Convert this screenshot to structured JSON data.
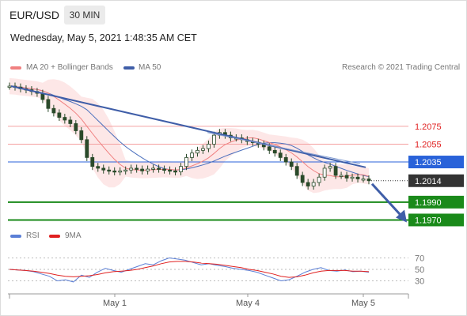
{
  "header": {
    "symbol": "EUR/USD",
    "timeframe": "30 MIN",
    "datetime": "Wednesday, May 5, 2021 1:48:35 AM CET"
  },
  "legend": {
    "ma20": "MA 20 + Bollinger Bands",
    "ma50": "MA 50",
    "credit": "Research © 2021 Trading Central",
    "rsi": "RSI",
    "rsi_ma": "9MA"
  },
  "colors": {
    "ma20": "#f08080",
    "band": "#fde3e3",
    "ma50": "#4a6fbd",
    "trendline": "#3f5ea8",
    "resistance": "#f4a0a0",
    "pivot": "#2962d9",
    "support": "#1a8a1a",
    "rsi": "#5b7fd6",
    "rsi_ma": "#e02020",
    "candle": "#2a4a2a"
  },
  "chart_data": [
    {
      "type": "line",
      "title": "EUR/USD",
      "xlabel": "",
      "ylabel": "",
      "x_ticks": [
        "May 1",
        "May 4",
        "May 5"
      ],
      "ylim": [
        1.1958,
        1.2128
      ],
      "levels": [
        {
          "label": "1.2075",
          "value": 1.2075,
          "kind": "resistance"
        },
        {
          "label": "1.2055",
          "value": 1.2055,
          "kind": "resistance"
        },
        {
          "label": "1.2035",
          "value": 1.2035,
          "kind": "pivot"
        },
        {
          "label": "1.1990",
          "value": 1.199,
          "kind": "support"
        },
        {
          "label": "1.1970",
          "value": 1.197,
          "kind": "support"
        }
      ],
      "last_price": {
        "label": "1.2014",
        "value": 1.2014
      },
      "series": [
        {
          "name": "",
          "values": [
            1.212,
            1.2119,
            1.2117,
            1.2116,
            1.2114,
            1.2112,
            1.2105,
            1.2095,
            1.209,
            1.2085,
            1.2082,
            1.2078,
            1.207,
            1.206,
            1.204,
            1.203,
            1.2028,
            1.2026,
            1.2025,
            1.2024,
            1.2025,
            1.2026,
            1.2028,
            1.2027,
            1.2025,
            1.2027,
            1.2028,
            1.2027,
            1.2026,
            1.2025,
            1.2024,
            1.203,
            1.204,
            1.2045,
            1.2048,
            1.205,
            1.2055,
            1.2065,
            1.2068,
            1.2065,
            1.2062,
            1.2062,
            1.206,
            1.2058,
            1.2057,
            1.2055,
            1.2052,
            1.2048,
            1.2045,
            1.204,
            1.2035,
            1.203,
            1.202,
            1.2012,
            1.2008,
            1.2012,
            1.2018,
            1.2028,
            1.203,
            1.202,
            1.202,
            1.2017,
            1.2018,
            1.2016,
            1.2016,
            1.2014
          ]
        }
      ]
    },
    {
      "type": "line",
      "title": "RSI",
      "ylim": [
        10,
        90
      ],
      "y_ticks": [
        30,
        50,
        70
      ],
      "series": [
        {
          "name": "RSI",
          "values": [
            50,
            49,
            48,
            46,
            42,
            38,
            30,
            32,
            28,
            40,
            36,
            45,
            52,
            48,
            45,
            50,
            55,
            60,
            58,
            65,
            70,
            68,
            66,
            62,
            58,
            60,
            57,
            55,
            52,
            50,
            48,
            45,
            40,
            35,
            30,
            32,
            38,
            45,
            50,
            53,
            48,
            47,
            49,
            46,
            47,
            45
          ]
        },
        {
          "name": "9MA",
          "values": [
            50,
            49,
            48,
            47,
            45,
            43,
            40,
            38,
            37,
            38,
            39,
            41,
            44,
            46,
            47,
            48,
            50,
            53,
            56,
            60,
            63,
            64,
            64,
            63,
            61,
            60,
            59,
            57,
            55,
            53,
            50,
            48,
            45,
            42,
            38,
            36,
            37,
            40,
            44,
            47,
            48,
            48,
            48,
            47,
            47,
            46
          ]
        }
      ]
    }
  ]
}
